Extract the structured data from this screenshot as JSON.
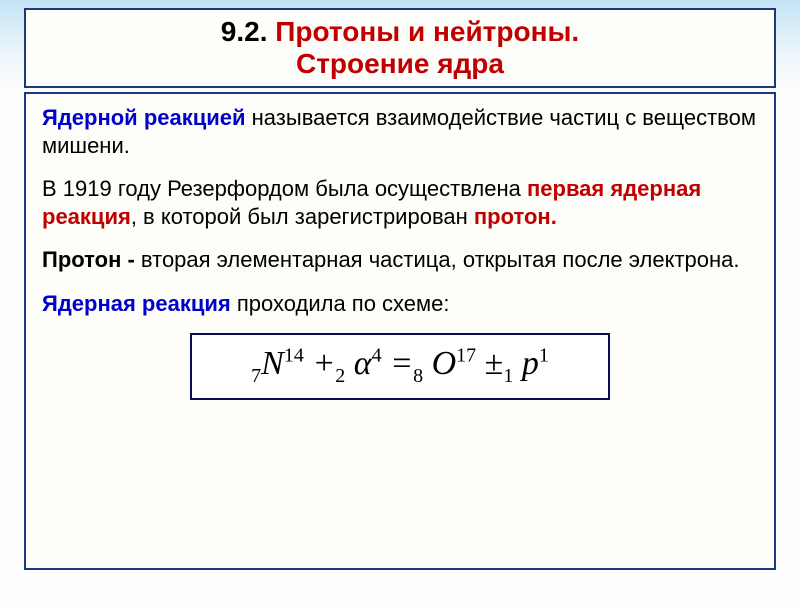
{
  "colors": {
    "border": "#1a3a7a",
    "formula_border": "#0a0a5a",
    "red_text": "#c00000",
    "blue_text": "#0000cc",
    "bg_box": "#fdfdf9",
    "bg_gradient_top": "#c5e3f5",
    "bg_gradient_bottom": "#fefefe"
  },
  "typography": {
    "title_fontsize": 28,
    "body_fontsize": 22,
    "formula_fontsize": 34,
    "font_family_body": "Arial",
    "font_family_formula": "Times New Roman"
  },
  "title": {
    "number": "9.2.",
    "line1": "Протоны и нейтроны.",
    "line2": "Строение ядра"
  },
  "paragraphs": {
    "p1_a": "Ядерной реакцией",
    "p1_b": " называется взаимодействие частиц с веществом мишени.",
    "p2_a": "В 1919 году Резерфордом была осуществлена ",
    "p2_b": "первая ядерная реакция",
    "p2_c": ", в которой был зарегистрирован ",
    "p2_d": "протон.",
    "p3_a": "Протон - ",
    "p3_b": "вторая элементарная частица, открытая после электрона.",
    "p4_a": "Ядерная реакция ",
    "p4_b": "проходила по схеме:"
  },
  "formula": {
    "n_sub": "7",
    "n_sym": "N",
    "n_sup": "14",
    "plus1": "+",
    "a_sub": "2",
    "a_sym": "α",
    "a_sup": "4",
    "eq": "=",
    "o_sub": "8",
    "o_sym": "O",
    "o_sup": "17",
    "pm": "±",
    "p_sub": "1",
    "p_sym": "p",
    "p_sup": "1"
  }
}
